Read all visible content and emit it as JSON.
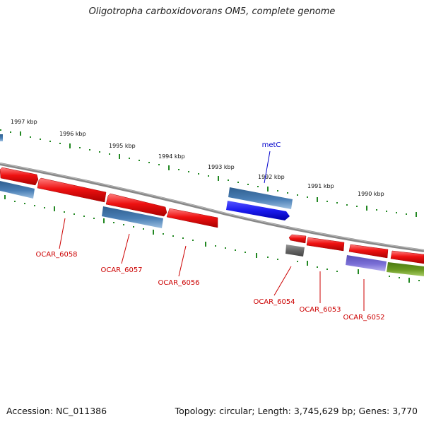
{
  "title": "Oligotropha carboxidovorans OM5, complete genome",
  "footer": {
    "accession": "Accession: NC_011386",
    "summary": "Topology: circular; Length: 3,745,629 bp; Genes: 3,770"
  },
  "kbp_labels": [
    "1997 kbp",
    "1996 kbp",
    "1995 kbp",
    "1994 kbp",
    "1993 kbp",
    "1992 kbp",
    "1991 kbp",
    "1990 kbp"
  ],
  "gene_labels": {
    "metC": "metC",
    "ocar6058": "OCAR_6058",
    "ocar6057": "OCAR_6057",
    "ocar6056": "OCAR_6056",
    "ocar6054": "OCAR_6054",
    "ocar6053": "OCAR_6053",
    "ocar6052": "OCAR_6052"
  },
  "colors": {
    "red": "#ee1111",
    "steelblue": "#4a7fb5",
    "blue": "#1a1aee",
    "purple": "#7a6fd6",
    "olive": "#6b9a22",
    "gray": "#666666",
    "backbone": "#888888",
    "ticks": "#228822",
    "label_red": "#cc0000",
    "label_blue": "#0000cc"
  }
}
